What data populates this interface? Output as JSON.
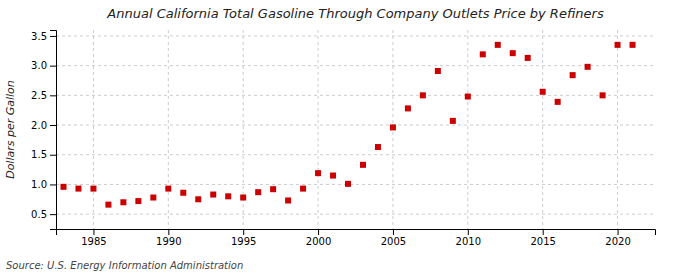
{
  "chart_data": {
    "type": "scatter",
    "title": "Annual California Total Gasoline Through Company Outlets Price by Refiners",
    "ylabel": "Dollars per Gallon",
    "source": "Source: U.S. Energy Information Administration",
    "color": "#cc0000",
    "marker": "square",
    "grid": true,
    "xlim": [
      1982.5,
      2022.5
    ],
    "ylim": [
      0.25,
      3.6
    ],
    "xticks": [
      1985,
      1990,
      1995,
      2000,
      2005,
      2010,
      2015,
      2020
    ],
    "yticks": [
      0.5,
      {
        "value": 1,
        "label": "1.0"
      },
      1.5,
      {
        "value": 2,
        "label": "2.0"
      },
      2.5,
      {
        "value": 3,
        "label": "3.0"
      },
      3.5
    ],
    "x": [
      1983,
      1984,
      1985,
      1986,
      1987,
      1988,
      1989,
      1990,
      1991,
      1992,
      1993,
      1994,
      1995,
      1996,
      1997,
      1998,
      1999,
      2000,
      2001,
      2002,
      2003,
      2004,
      2005,
      2006,
      2007,
      2008,
      2009,
      2010,
      2011,
      2012,
      2013,
      2014,
      2015,
      2016,
      2017,
      2018,
      2019,
      2020,
      2021
    ],
    "values": [
      0.96,
      0.93,
      0.93,
      0.66,
      0.7,
      0.72,
      0.78,
      0.93,
      0.86,
      0.75,
      0.83,
      0.8,
      0.78,
      0.87,
      0.92,
      0.73,
      0.93,
      1.19,
      1.15,
      1.01,
      1.33,
      1.63,
      1.96,
      2.28,
      2.5,
      2.91,
      2.07,
      2.48,
      3.19,
      3.35,
      3.21,
      3.13,
      2.56,
      2.39,
      2.84,
      2.98,
      2.5,
      3.35,
      3.35
    ]
  }
}
